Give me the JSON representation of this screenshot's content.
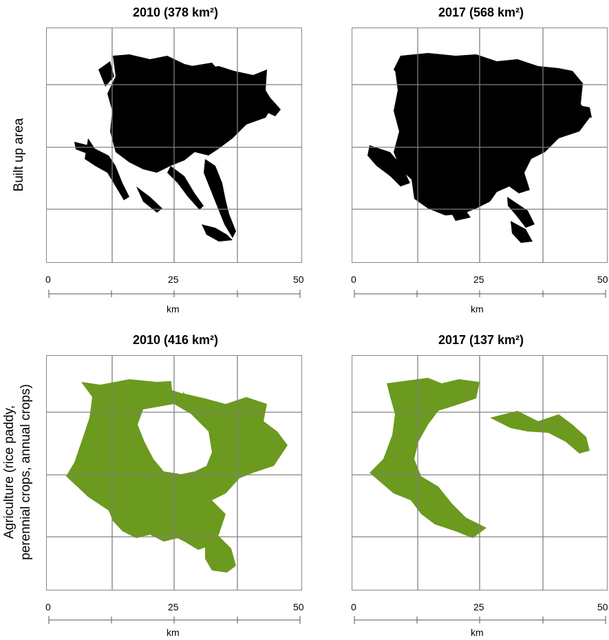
{
  "row_labels": {
    "built_up": "Built up area",
    "agriculture_line1": "Agriculture (rice paddy,",
    "agriculture_line2": "perennial crops, annual crops)"
  },
  "panels": {
    "built_2010": {
      "title": "2010 (378 km²)",
      "land_class": "built up area",
      "color": "#000000"
    },
    "built_2017": {
      "title": "2017 (568 km²)",
      "land_class": "built up area",
      "color": "#000000"
    },
    "agri_2010": {
      "title": "2010 (416 km²)",
      "land_class": "agriculture",
      "color": "#6b9a1f"
    },
    "agri_2017": {
      "title": "2017 (137 km²)",
      "land_class": "agriculture",
      "color": "#6b9a1f"
    }
  },
  "scale": {
    "ticks": [
      "0",
      "25",
      "50"
    ],
    "unit": "km"
  },
  "colors": {
    "built_up": "#000000",
    "agriculture": "#6b9a1f",
    "grid": "#808080"
  }
}
